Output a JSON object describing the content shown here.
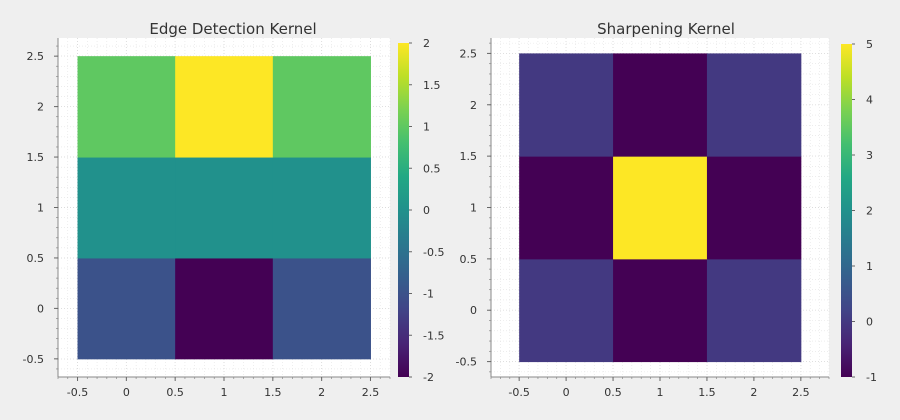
{
  "chart_data": [
    {
      "type": "heatmap",
      "title": "Edge Detection Kernel",
      "colormap": "viridis",
      "values": [
        [
          -1,
          -2,
          -1
        ],
        [
          0,
          0,
          0
        ],
        [
          1,
          2,
          1
        ]
      ],
      "xlim": [
        -0.7,
        2.7
      ],
      "ylim": [
        2.68,
        -0.68
      ],
      "xticks": [
        -0.5,
        0,
        0.5,
        1,
        1.5,
        2,
        2.5
      ],
      "xtick_labels": [
        "-0.5",
        "0",
        "0.5",
        "1",
        "1.5",
        "2",
        "2.5"
      ],
      "yticks": [
        -0.5,
        0,
        0.5,
        1,
        1.5,
        2,
        2.5
      ],
      "ytick_labels": [
        "-0.5",
        "0",
        "0.5",
        "1",
        "1.5",
        "2",
        "2.5"
      ],
      "colorbar": {
        "range": [
          -2,
          2
        ],
        "ticks": [
          2,
          1.5,
          1,
          0.5,
          0,
          -0.5,
          -1,
          -1.5,
          -2
        ],
        "tick_labels": [
          "2",
          "1.5",
          "1",
          "0.5",
          "0",
          "-0.5",
          "-1",
          "-1.5",
          "-2"
        ]
      },
      "grid": true
    },
    {
      "type": "heatmap",
      "title": "Sharpening Kernel",
      "colormap": "viridis",
      "values": [
        [
          0,
          -1,
          0
        ],
        [
          -1,
          5,
          -1
        ],
        [
          0,
          -1,
          0
        ]
      ],
      "xlim": [
        -0.8,
        2.8
      ],
      "ylim": [
        2.65,
        -0.65
      ],
      "xticks": [
        -0.5,
        0,
        0.5,
        1,
        1.5,
        2,
        2.5
      ],
      "xtick_labels": [
        "-0.5",
        "0",
        "0.5",
        "1",
        "1.5",
        "2",
        "2.5"
      ],
      "yticks": [
        -0.5,
        0,
        0.5,
        1,
        1.5,
        2,
        2.5
      ],
      "ytick_labels": [
        "-0.5",
        "0",
        "0.5",
        "1",
        "1.5",
        "2",
        "2.5"
      ],
      "colorbar": {
        "range": [
          -1,
          5
        ],
        "ticks": [
          5,
          4,
          3,
          2,
          1,
          0,
          -1
        ],
        "tick_labels": [
          "5",
          "4",
          "3",
          "2",
          "1",
          "0",
          "-1"
        ]
      },
      "grid": true
    }
  ]
}
